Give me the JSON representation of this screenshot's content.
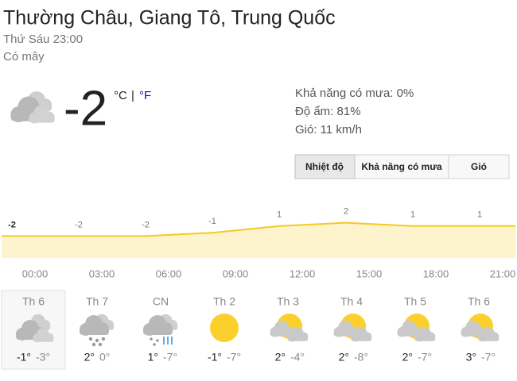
{
  "header": {
    "location": "Thường Châu, Giang Tô, Trung Quốc",
    "time": "Thứ Sáu 23:00",
    "condition": "Có mây"
  },
  "current": {
    "temperature": -2,
    "unit_c": "°C",
    "separator": "|",
    "unit_f": "°F",
    "icon": "cloudy"
  },
  "details": [
    "Khả năng có mưa: 0%",
    "Độ ẩm: 81%",
    "Gió: 11 km/h"
  ],
  "tabs": [
    "Nhiệt độ",
    "Khả năng có mưa",
    "Gió"
  ],
  "hourly": {
    "times": [
      "00:00",
      "03:00",
      "06:00",
      "09:00",
      "12:00",
      "15:00",
      "18:00",
      "21:00"
    ],
    "values": [
      -2,
      -2,
      -2,
      -1,
      1,
      2,
      1,
      1
    ]
  },
  "daily": [
    {
      "day": "Th 6",
      "high": "-1°",
      "low": "-3°",
      "icon": "cloudy"
    },
    {
      "day": "Th 7",
      "high": "2°",
      "low": "0°",
      "icon": "snow"
    },
    {
      "day": "CN",
      "high": "1°",
      "low": "-7°",
      "icon": "rain-snow"
    },
    {
      "day": "Th 2",
      "high": "-1°",
      "low": "-7°",
      "icon": "sunny"
    },
    {
      "day": "Th 3",
      "high": "2°",
      "low": "-4°",
      "icon": "partly-cloudy"
    },
    {
      "day": "Th 4",
      "high": "2°",
      "low": "-8°",
      "icon": "partly-cloudy"
    },
    {
      "day": "Th 5",
      "high": "2°",
      "low": "-7°",
      "icon": "partly-cloudy"
    },
    {
      "day": "Th 6",
      "high": "3°",
      "low": "-7°",
      "icon": "partly-cloudy"
    }
  ]
}
